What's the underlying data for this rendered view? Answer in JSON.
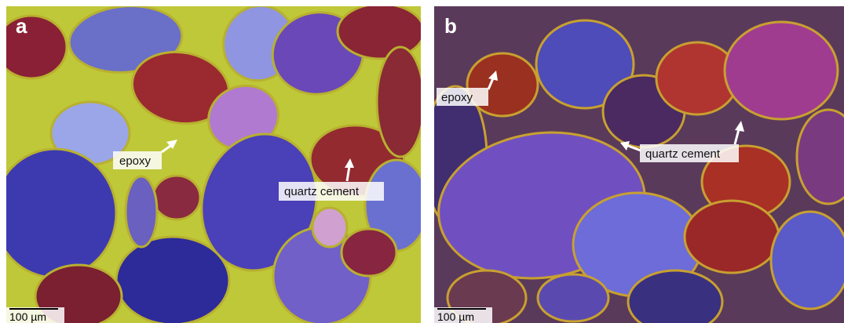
{
  "panels": [
    {
      "label": "a",
      "annotations": [
        "epoxy",
        "quartz cement"
      ],
      "scale_bar": "100 µm"
    },
    {
      "label": "b",
      "annotations": [
        "epoxy",
        "quartz cement"
      ],
      "scale_bar": "100 µm"
    }
  ]
}
